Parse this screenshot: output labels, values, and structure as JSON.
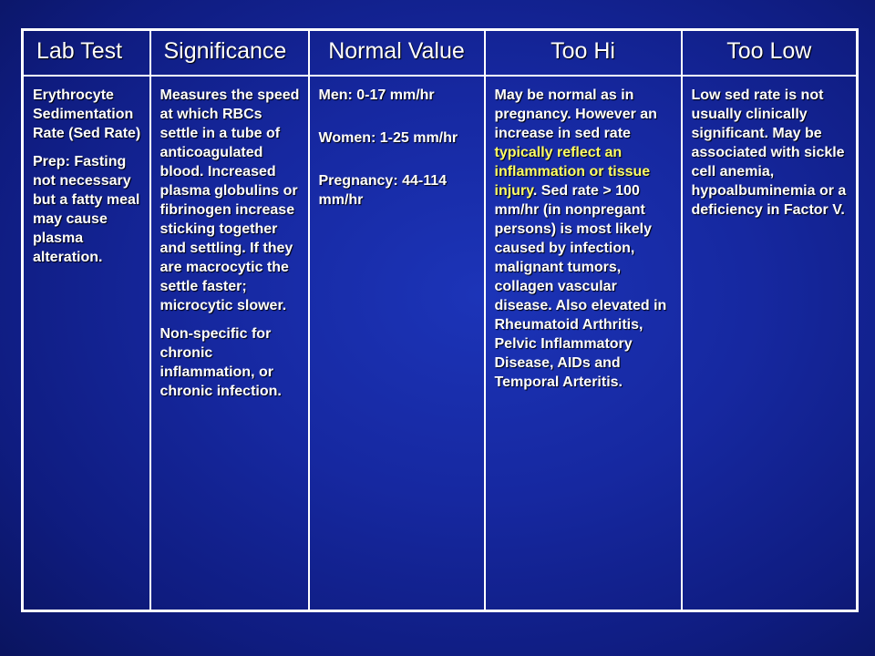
{
  "table": {
    "headers": [
      "Lab Test",
      "Significance",
      "Normal Value",
      "Too Hi",
      "Too Low"
    ],
    "lab_test": {
      "name": "Erythrocyte Sedimentation Rate (Sed Rate)",
      "prep": "Prep: Fasting not necessary but a fatty meal may cause plasma alteration."
    },
    "significance": {
      "para1": "Measures the speed at which RBCs settle in a tube of anticoagulated blood. Increased plasma globulins or fibrinogen increase sticking together and settling. If they are macrocytic the settle faster; microcytic slower.",
      "para2": "Non-specific for chronic inflammation, or chronic infection."
    },
    "normal_value": {
      "men": "Men: 0-17 mm/hr",
      "women": "Women: 1-25 mm/hr",
      "pregnancy": "Pregnancy: 44-114 mm/hr"
    },
    "too_hi": {
      "part1": "May be normal as in pregnancy. However an increase in sed rate ",
      "highlight": "typically reflect an inflammation or tissue injury",
      "part2": ". Sed rate > 100 mm/hr (in nonpregant persons) is most likely caused by infection, malignant tumors, collagen vascular disease. Also elevated in Rheumatoid Arthritis, Pelvic Inflammatory Disease, AIDs and Temporal Arteritis."
    },
    "too_low": {
      "text": "Low sed rate is not usually clinically significant. May be associated with sickle cell anemia, hypoalbuminemia or a deficiency in Factor V."
    }
  },
  "colors": {
    "background": "#1628a0",
    "text": "#ffffff",
    "highlight": "#ffff66",
    "border": "#ffffff"
  }
}
